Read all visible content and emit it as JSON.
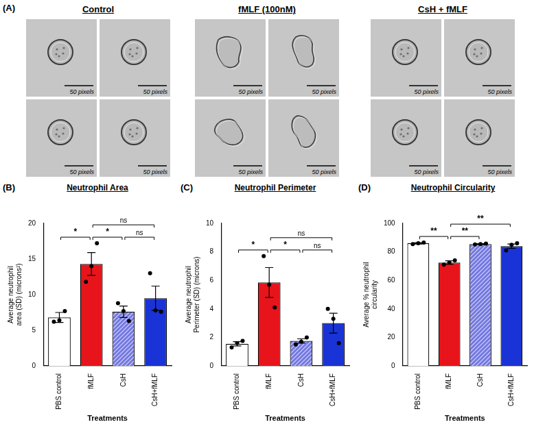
{
  "panel_a": {
    "panel_label": "(A)",
    "groups": [
      {
        "title": "Control",
        "scale_bars": [
          "50 pixels",
          "50 pixels",
          "50 pixels",
          "50 pixels"
        ]
      },
      {
        "title": "fMLF (100nM)",
        "scale_bars": [
          "50 pixels",
          "50 pixels",
          "50 pixels",
          "50 pixels"
        ]
      },
      {
        "title": "CsH + fMLF",
        "scale_bars": [
          "50 pixels",
          "50 pixels",
          "50 pixels",
          "50 pixels"
        ]
      }
    ]
  },
  "chart_data": [
    {
      "type": "bar",
      "panel_label": "(B)",
      "title": "Neutrophil Area",
      "x_label": "Treatments",
      "y_label": "Average neutrophil area (SD) (microns²)",
      "categories": [
        "PBS control",
        "fMLF",
        "CsH",
        "CsH+fMLF"
      ],
      "values": [
        6.8,
        14.3,
        7.6,
        9.5
      ],
      "error": [
        0.7,
        1.6,
        0.8,
        1.7
      ],
      "points": [
        [
          6.2,
          6.4,
          7.7
        ],
        [
          11.8,
          14.0,
          17.2
        ],
        [
          8.8,
          7.7,
          6.3
        ],
        [
          13.0,
          7.8,
          7.6
        ]
      ],
      "colors": [
        "#ffffff",
        "#e8141b",
        "#7378e0",
        "#1a33d6"
      ],
      "ylim": [
        0,
        20
      ],
      "yticks": [
        0,
        5,
        10,
        15,
        20
      ],
      "grid": false,
      "annotations": [
        {
          "from": "PBS control",
          "to": "fMLF",
          "text": "*"
        },
        {
          "from": "fMLF",
          "to": "CsH",
          "text": "*"
        },
        {
          "from": "CsH",
          "to": "CsH+fMLF",
          "text": "ns"
        },
        {
          "from": "fMLF",
          "to": "CsH+fMLF",
          "text": "ns"
        }
      ]
    },
    {
      "type": "bar",
      "panel_label": "(C)",
      "title": "Neutrophil Perimeter",
      "x_label": "Treatments",
      "y_label": "Average neutrophil Perimeter (SD) (microns)",
      "categories": [
        "PBS control",
        "fMLF",
        "CsH",
        "CsH+fMLF"
      ],
      "values": [
        1.55,
        5.85,
        1.75,
        3.0
      ],
      "error": [
        0.15,
        1.05,
        0.15,
        0.7
      ],
      "points": [
        [
          1.3,
          1.6,
          1.75
        ],
        [
          7.7,
          5.7,
          4.1
        ],
        [
          1.5,
          1.7,
          2.0
        ],
        [
          4.0,
          3.3,
          1.6
        ]
      ],
      "colors": [
        "#ffffff",
        "#e8141b",
        "#7378e0",
        "#1a33d6"
      ],
      "ylim": [
        0,
        10
      ],
      "yticks": [
        0,
        2,
        4,
        6,
        8,
        10
      ],
      "grid": false,
      "annotations": [
        {
          "from": "PBS control",
          "to": "fMLF",
          "text": "*"
        },
        {
          "from": "fMLF",
          "to": "CsH",
          "text": "*"
        },
        {
          "from": "CsH",
          "to": "CsH+fMLF",
          "text": "ns"
        },
        {
          "from": "fMLF",
          "to": "CsH+fMLF",
          "text": "ns"
        }
      ]
    },
    {
      "type": "bar",
      "panel_label": "(D)",
      "title": "Neutrophil Circularity",
      "x_label": "Treatments",
      "y_label": "Average % neutrophil circularity",
      "categories": [
        "PBS control",
        "fMLF",
        "CsH",
        "CsH+fMLF"
      ],
      "values": [
        86,
        72.5,
        85.5,
        84
      ],
      "error": [
        0.5,
        1.2,
        0.3,
        1.5
      ],
      "points": [
        [
          85.5,
          86,
          86.5
        ],
        [
          71,
          72.5,
          74
        ],
        [
          85.2,
          85.5,
          85.8
        ],
        [
          81,
          85,
          86
        ]
      ],
      "colors": [
        "#ffffff",
        "#e8141b",
        "#7378e0",
        "#1a33d6"
      ],
      "ylim": [
        0,
        100
      ],
      "yticks": [
        0,
        20,
        40,
        60,
        80,
        100
      ],
      "grid": false,
      "annotations": [
        {
          "from": "PBS control",
          "to": "fMLF",
          "text": "**"
        },
        {
          "from": "fMLF",
          "to": "CsH",
          "text": "**"
        },
        {
          "from": "fMLF",
          "to": "CsH+fMLF",
          "text": "**"
        }
      ]
    }
  ]
}
